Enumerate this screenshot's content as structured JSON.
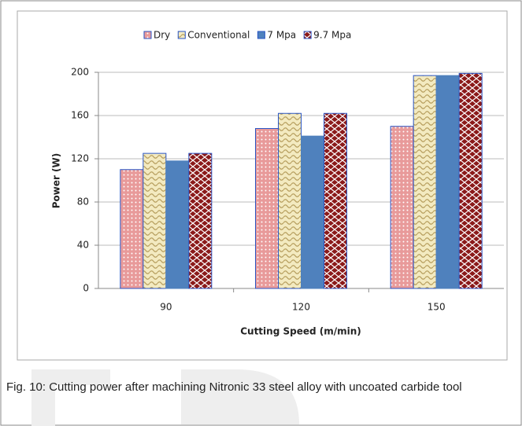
{
  "chart_data": {
    "type": "bar",
    "categories": [
      "90",
      "120",
      "150"
    ],
    "series": [
      {
        "name": "Dry",
        "color": "#e89a9a",
        "values": [
          110,
          148,
          150
        ]
      },
      {
        "name": "Conventional",
        "color": "#f3eac0",
        "values": [
          125,
          162,
          197
        ]
      },
      {
        "name": "7 Mpa",
        "color": "#4f81bd",
        "values": [
          118,
          141,
          197
        ]
      },
      {
        "name": "9.7 Mpa",
        "color": "#8b1a1a",
        "values": [
          125,
          162,
          199
        ]
      }
    ],
    "xlabel": "Cutting Speed (m/min)",
    "ylabel": "Power (W)",
    "ylim": [
      0,
      200
    ],
    "yticks": [
      0,
      40,
      80,
      120,
      160,
      200
    ],
    "grid": true,
    "legend": "top"
  },
  "caption": "Fig. 10: Cutting power after machining Nitronic 33 steel alloy with uncoated carbide tool"
}
